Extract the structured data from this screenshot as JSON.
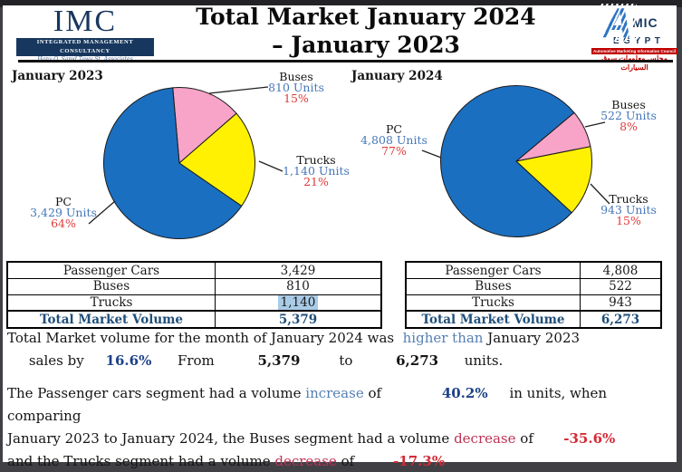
{
  "header": {
    "imc": {
      "acronym": "IMC",
      "name": "Integrated Management Consultancy",
      "tagline": "Hany O. Samd Tawy St. Associates"
    },
    "title_line1": "Total Market January 2024",
    "title_line2": "– January 2023",
    "amic": {
      "a": "A",
      "mic": "MIC",
      "egypt": "EGYPT",
      "strip": "Automotive Marketing Information Council",
      "arabic": "مجلس معلومات سوق السيارات"
    }
  },
  "chart_data": [
    {
      "type": "pie",
      "title": "January 2023",
      "categories": [
        "Buses",
        "Trucks",
        "PC"
      ],
      "values": [
        810,
        1140,
        3429
      ],
      "percents": [
        15,
        21,
        64
      ],
      "total_units": 5379,
      "colors": [
        "#F8A3C8",
        "#FFF101",
        "#1B6FC0"
      ],
      "start_angle": -5,
      "legend_position": "callouts",
      "callouts": [
        {
          "name": "Buses",
          "units": "810 Units",
          "pct": "15%"
        },
        {
          "name": "Trucks",
          "units": "1,140 Units",
          "pct": "21%"
        },
        {
          "name": "PC",
          "units": "3,429 Units",
          "pct": "64%"
        }
      ]
    },
    {
      "type": "pie",
      "title": "January 2024",
      "categories": [
        "Buses",
        "Trucks",
        "PC"
      ],
      "values": [
        522,
        943,
        4808
      ],
      "percents": [
        8,
        15,
        77
      ],
      "total_units": 6273,
      "colors": [
        "#F8A3C8",
        "#FFF101",
        "#1B6FC0"
      ],
      "start_angle": 50,
      "legend_position": "callouts",
      "callouts": [
        {
          "name": "Buses",
          "units": "522 Units",
          "pct": "8%"
        },
        {
          "name": "Trucks",
          "units": "943 Units",
          "pct": "15%"
        },
        {
          "name": "PC",
          "units": "4,808 Units",
          "pct": "77%"
        }
      ]
    }
  ],
  "tables": {
    "left": {
      "rows": [
        {
          "label": "Passenger Cars",
          "value": "3,429"
        },
        {
          "label": "Buses",
          "value": "810"
        },
        {
          "label": "Trucks",
          "value": "1,140"
        },
        {
          "label": "Total Market Volume",
          "value": "5,379"
        }
      ]
    },
    "right": {
      "rows": [
        {
          "label": "Passenger Cars",
          "value": "4,808"
        },
        {
          "label": "Buses",
          "value": "522"
        },
        {
          "label": "Trucks",
          "value": "943"
        },
        {
          "label": "Total Market Volume",
          "value": "6,273"
        }
      ]
    }
  },
  "paragraphs": {
    "p1": [
      [
        {
          "t": "Total Market volume for the month of January 2024 was  ",
          "s": "k"
        },
        {
          "t": "higher than",
          "s": "blue"
        },
        {
          "t": " January 2023",
          "s": "k"
        }
      ],
      [
        {
          "t": "     sales by     ",
          "s": "k"
        },
        {
          "t": "16.6%",
          "s": "navyb"
        },
        {
          "t": "      From          ",
          "s": "k"
        },
        {
          "t": "5,379",
          "s": "kb"
        },
        {
          "t": "         to          ",
          "s": "k"
        },
        {
          "t": "6,273",
          "s": "kb"
        },
        {
          "t": "      units.",
          "s": "k"
        }
      ]
    ],
    "p2": [
      [
        {
          "t": "The Passenger cars segment had a volume ",
          "s": "k"
        },
        {
          "t": "increase",
          "s": "blue"
        },
        {
          "t": " of              ",
          "s": "k"
        },
        {
          "t": "40.2%",
          "s": "navyb"
        },
        {
          "t": "     in units, when comparing",
          "s": "k"
        }
      ],
      [
        {
          "t": "January 2023 to January 2024, the Buses segment had a volume ",
          "s": "k"
        },
        {
          "t": "decrease",
          "s": "crimson"
        },
        {
          "t": " of       ",
          "s": "k"
        },
        {
          "t": "-35.6%",
          "s": "redb"
        }
      ],
      [
        {
          "t": "and the Trucks segment had a volume ",
          "s": "k"
        },
        {
          "t": "decrease",
          "s": "crimson"
        },
        {
          "t": " of         ",
          "s": "k"
        },
        {
          "t": "-17.3%",
          "s": "redb"
        }
      ]
    ]
  },
  "colors": {
    "navy": "#17375E",
    "table_total": "#1F4E79",
    "units_blue": "#4577B8",
    "pct_red": "#E23B3B",
    "crimson": "#BE3455",
    "value_red": "#D42B35",
    "value_navy": "#1E4289",
    "pie_blue": "#1B6FC0",
    "pie_pink": "#F8A3C8",
    "pie_yellow": "#FFF101",
    "amic_red": "#C00000",
    "highlight_blue": "#A9CBE6"
  }
}
